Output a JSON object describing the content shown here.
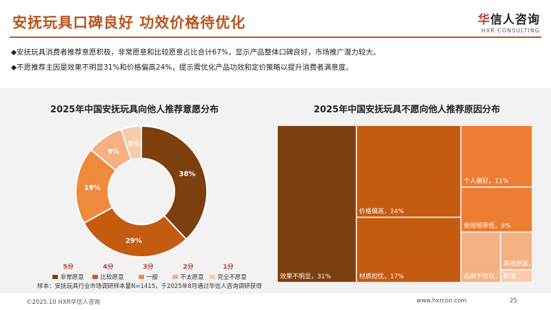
{
  "header": {
    "title": "安抚玩具口碑良好 功效价格待优化",
    "logo_cn_accent": "华",
    "logo_cn_rest": "信人咨询",
    "logo_en": "HXR CONSULTING"
  },
  "bullets": [
    "◆安抚玩具消费者推荐意愿积极，非常愿意和比较愿意占比合计67%，显示产品整体口碑良好，市场推广潜力较大。",
    "◆不愿推荐主因是效果不明显31%和价格偏高24%，提示需优化产品功效和定价策略以提升消费者满意度。"
  ],
  "left_chart": {
    "title": "2025年中国安抚玩具向他人推荐意愿分布",
    "scores": [
      "5分",
      "4分",
      "3分",
      "2分",
      "1分"
    ],
    "source": "样本：安抚玩具行业市场调研样本量N=1415，于2025年8月通过华信人咨询调研获得"
  },
  "right_chart": {
    "title": "2025年中国安抚玩具不愿向他人推荐原因分布"
  },
  "chart_data": [
    {
      "type": "pie",
      "title": "2025年中国安抚玩具向他人推荐意愿分布",
      "categories": [
        "非常愿意",
        "比较愿意",
        "一般",
        "不太愿意",
        "完全不愿意"
      ],
      "values": [
        38,
        29,
        19,
        9,
        5
      ],
      "labels": [
        "38%",
        "29%",
        "19%",
        "9%",
        "5%"
      ],
      "colors": [
        "#7d3f0e",
        "#c55a11",
        "#ef8a3c",
        "#f4b183",
        "#f8cbad"
      ],
      "legend_placement": "bottom"
    },
    {
      "type": "treemap",
      "title": "2025年中国安抚玩具不愿向他人推荐原因分布",
      "categories": [
        "效果不明显",
        "价格偏高",
        "材质担忧",
        "个人偏好",
        "使用频率低",
        "品牌不信任",
        "其他原因",
        "耐用"
      ],
      "values": [
        31,
        24,
        17,
        11,
        8,
        5,
        3,
        1
      ],
      "labels": [
        "效果不明显，31%",
        "价格偏高，24%",
        "材质担忧，17%",
        "个人偏好，11%",
        "使用频率低，8%",
        "品牌不信任，5%",
        "其他原因，3%",
        "耐用..."
      ],
      "colors": [
        "#7d3f0e",
        "#c55a11",
        "#c55a11",
        "#ed7d31",
        "#ed7d31",
        "#f4b183",
        "#f4b183",
        "#f8cbad"
      ]
    }
  ],
  "footer": {
    "copyright": "©2025.10 HXR华信人咨询",
    "url": "www.hxrcon.com",
    "page": "25"
  }
}
